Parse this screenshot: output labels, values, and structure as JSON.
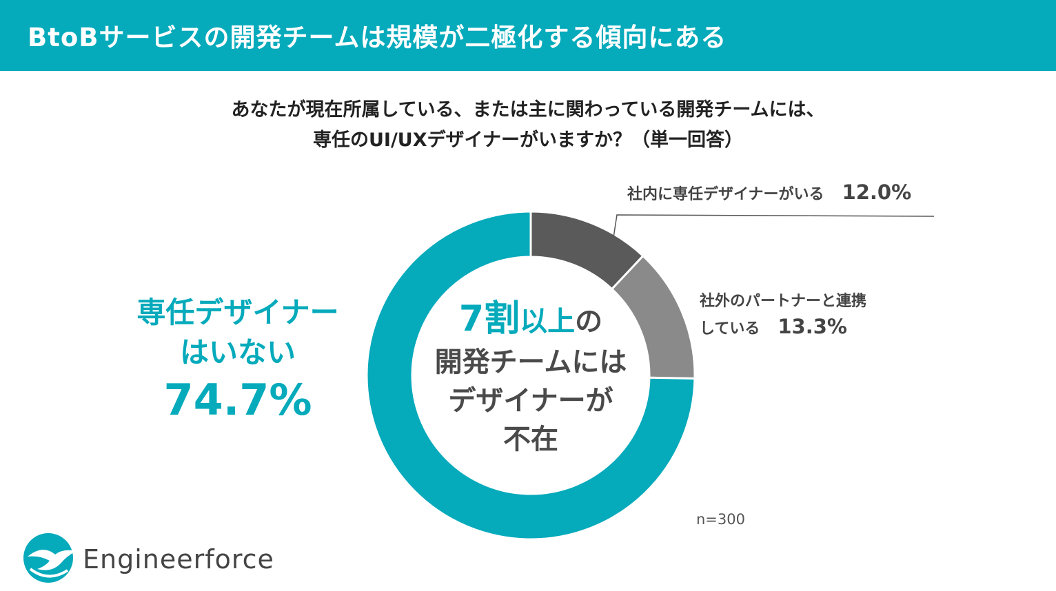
{
  "header": {
    "title": "BtoBサービスの開発チームは規模が二極化する傾向にある"
  },
  "question": {
    "line1": "あなたが現在所属している、または主に関わっている開発チームには、",
    "line2": "専任のUI/UXデザイナーがいますか？（単一回答）"
  },
  "big_label": {
    "line1": "専任デザイナー",
    "line2": "はいない",
    "percent": "74.7%"
  },
  "center": {
    "accent_num": "7割",
    "accent_word": "以上",
    "accent_tail": "の",
    "line2": "開発チームには",
    "line3": "デザイナーが",
    "line4": "不在"
  },
  "callouts": {
    "in_house": {
      "name": "社内に専任デザイナーがいる",
      "value": "12.0%"
    },
    "partner": {
      "name_line1": "社外のパートナーと連携",
      "name_line2": "している",
      "value": "13.3%"
    }
  },
  "note": "n=300",
  "logo": {
    "name": "Engineerforce",
    "icon": "bird-wave-logo-icon"
  },
  "colors": {
    "brand": "#05aabb",
    "in_house": "#5a5a5a",
    "partner": "#8a8a8a",
    "none": "#05aabb"
  },
  "chart_data": {
    "type": "pie",
    "variant": "donut",
    "title": "",
    "categories": [
      "社内に専任デザイナーがいる",
      "社外のパートナーと連携している",
      "専任デザイナーはいない"
    ],
    "values": [
      12.0,
      13.3,
      74.7
    ],
    "unit": "%",
    "colors": [
      "#5a5a5a",
      "#8a8a8a",
      "#05aabb"
    ],
    "start": "12 o'clock",
    "direction": "clockwise",
    "n": 300
  }
}
